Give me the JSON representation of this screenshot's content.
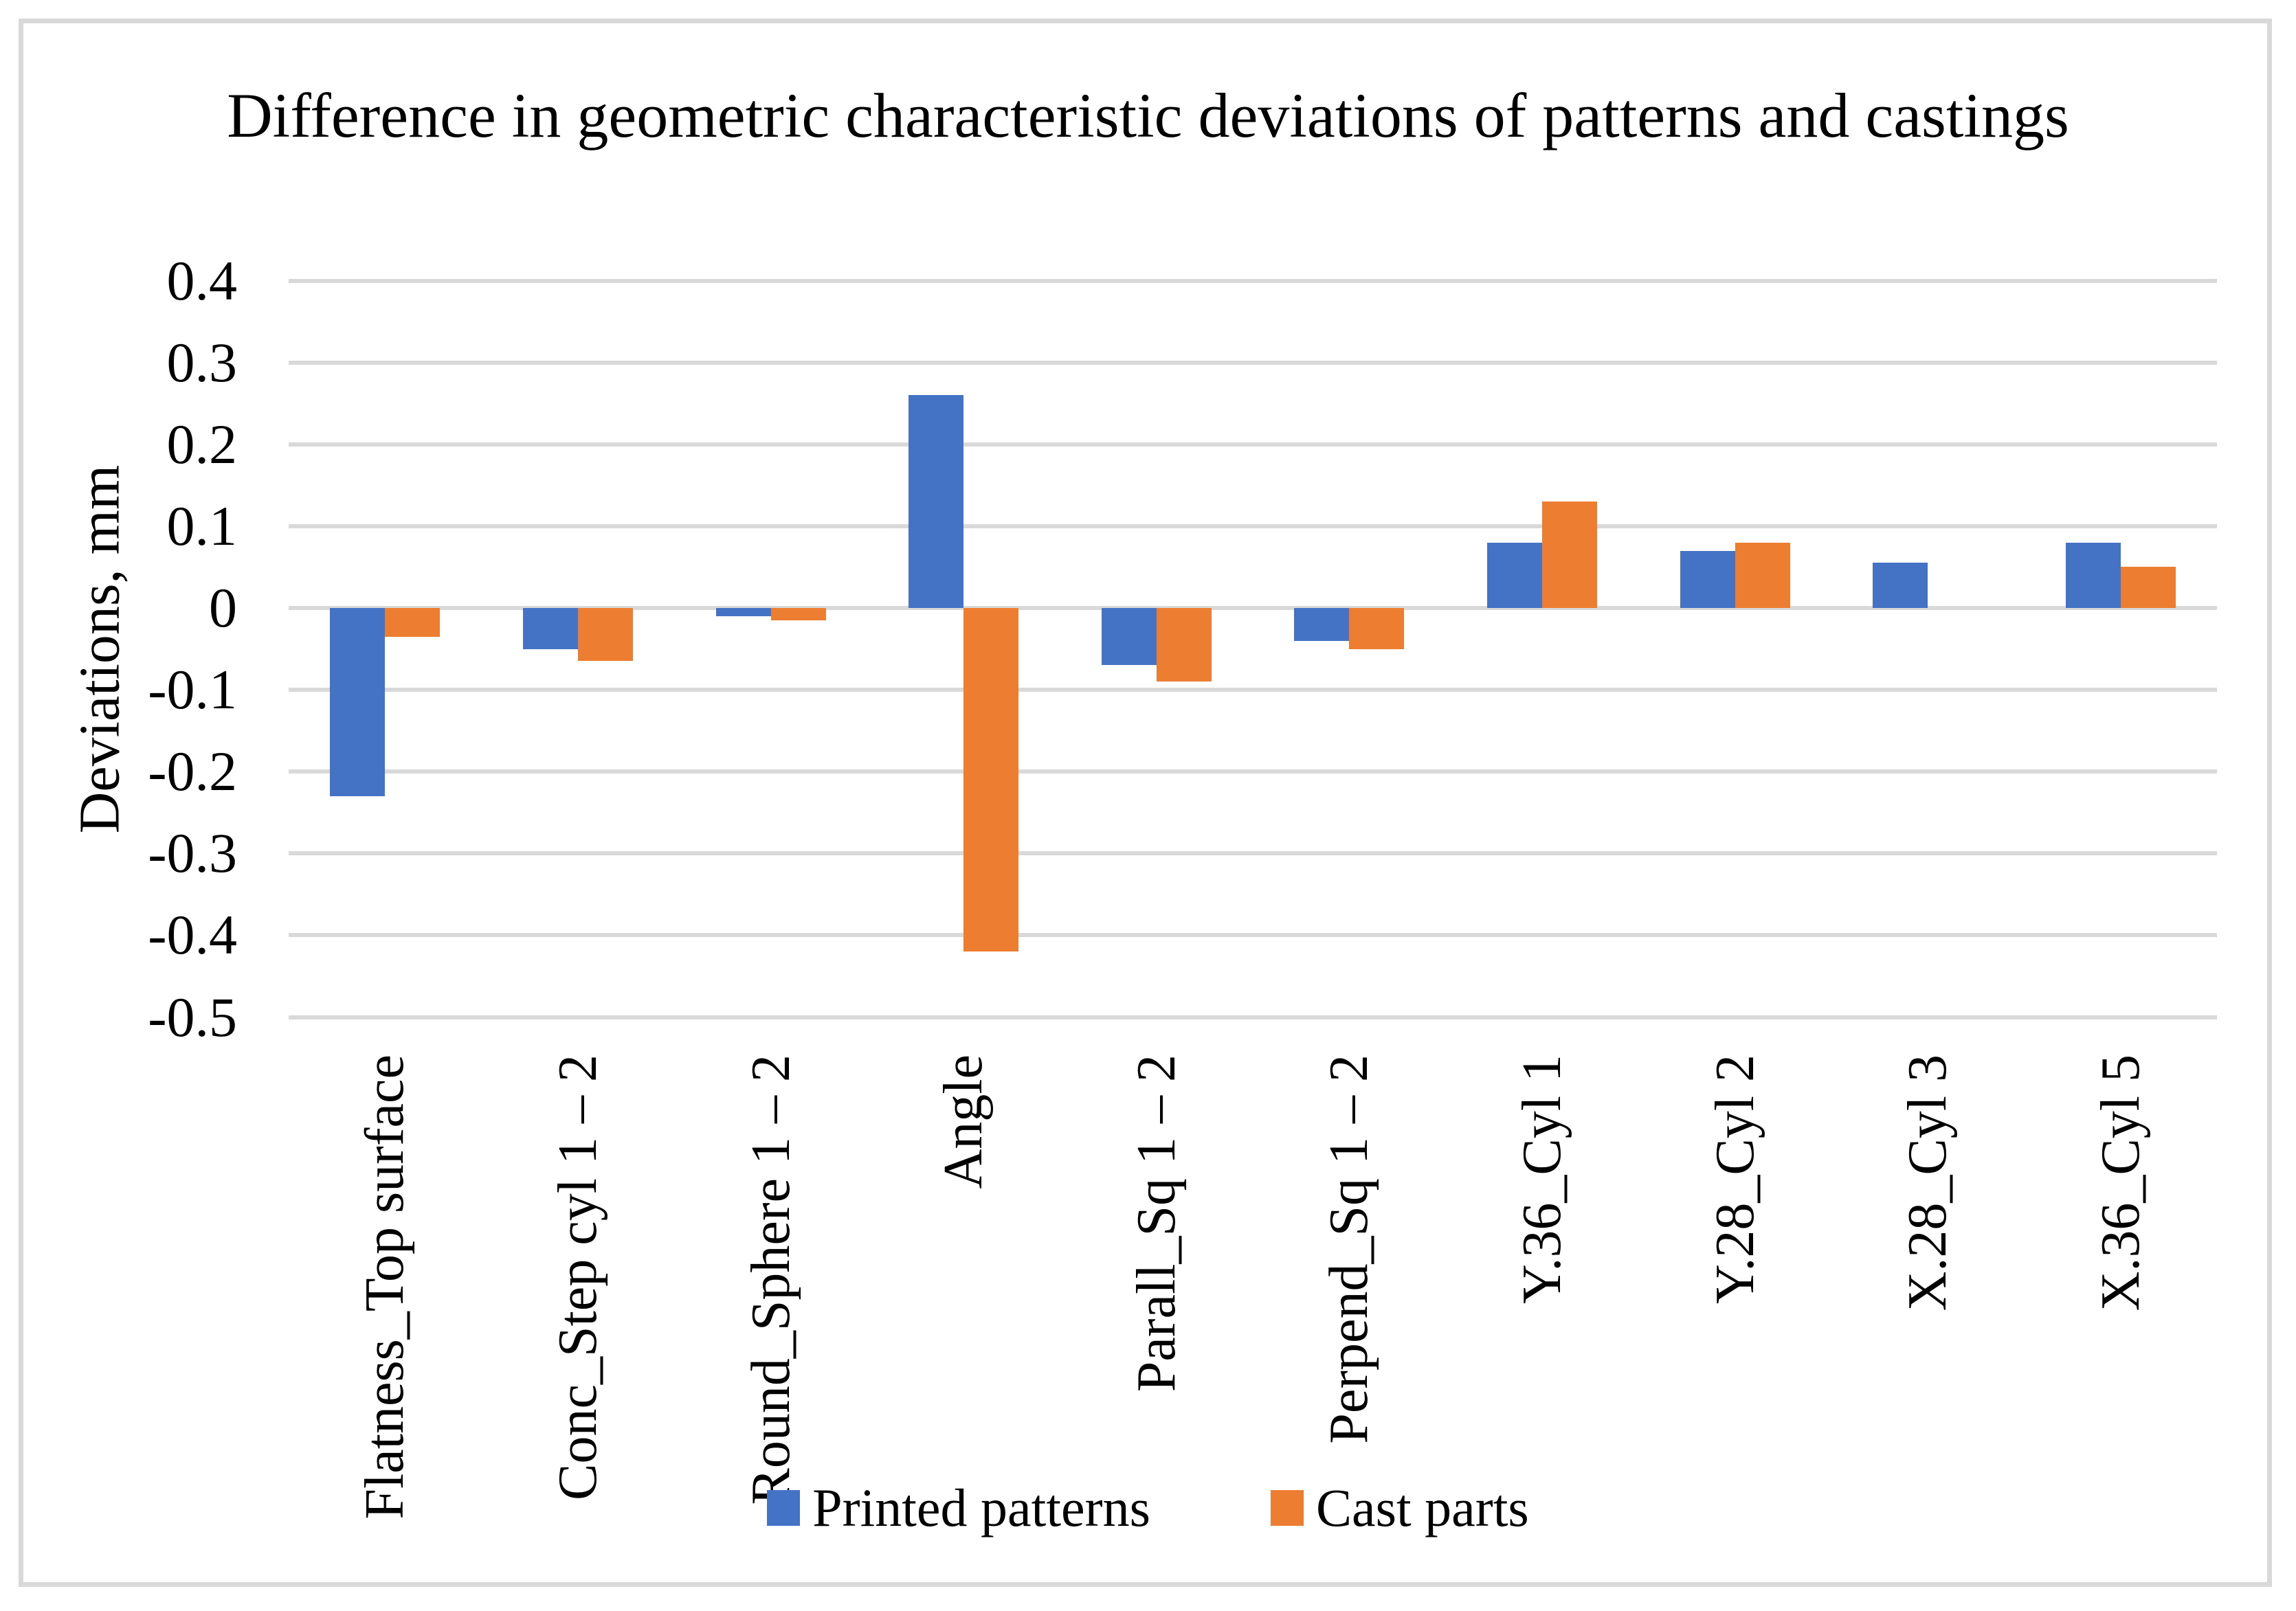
{
  "chart_data": {
    "type": "bar",
    "title": "Difference in geometric characteristic deviations of patterns and castings",
    "xlabel": "",
    "ylabel": "Deviations, mm",
    "categories": [
      "Flatness_Top surface",
      "Conc_Step cyl 1 – 2",
      "Round_Sphere 1 – 2",
      "Angle",
      "Parall_Sq 1 – 2",
      "Perpend_Sq 1 – 2",
      "Y.36_Cyl 1",
      "Y.28_Cyl 2",
      "X.28_Cyl 3",
      "X.36_Cyl 5"
    ],
    "series": [
      {
        "name": "Printed patterns",
        "color": "#4472C4",
        "values": [
          -0.23,
          -0.05,
          -0.01,
          0.26,
          -0.07,
          -0.04,
          0.08,
          0.07,
          0.055,
          0.08
        ]
      },
      {
        "name": "Cast parts",
        "color": "#ED7D31",
        "values": [
          -0.035,
          -0.065,
          -0.015,
          -0.42,
          -0.09,
          -0.05,
          0.13,
          0.08,
          0,
          0.05
        ]
      }
    ],
    "ylim": [
      -0.5,
      0.4
    ],
    "ytick_step": 0.1,
    "ytick_labels": [
      "0.4",
      "0.3",
      "0.2",
      "0.1",
      "0",
      "-0.1",
      "-0.2",
      "-0.3",
      "-0.4",
      "-0.5"
    ],
    "grid": true,
    "legend_position": "bottom"
  },
  "colors": {
    "gridline": "#d9d9d9",
    "border": "#d9d9d9",
    "background": "#ffffff",
    "text": "#000000"
  }
}
